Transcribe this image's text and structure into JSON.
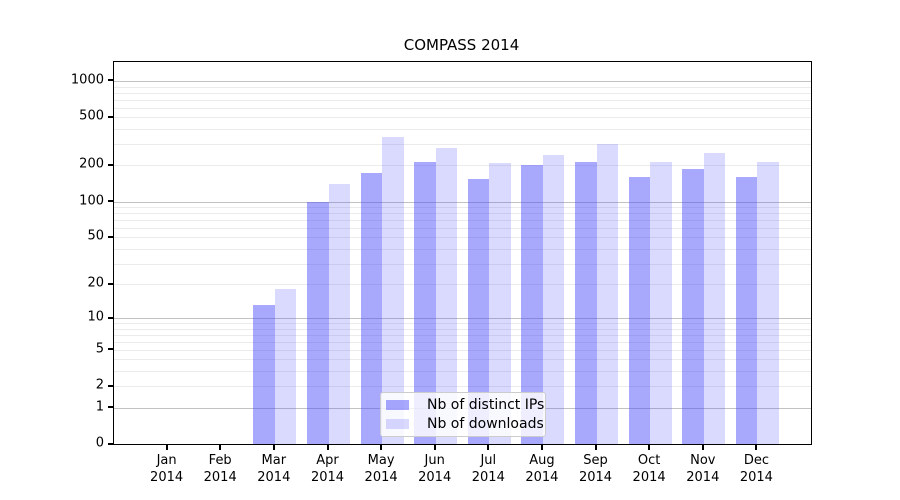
{
  "chart_data": {
    "type": "bar",
    "title": "COMPASS 2014",
    "y_scale": "log10(1+v)",
    "grid": "horizontal",
    "y_ticks": [
      0,
      1,
      2,
      5,
      10,
      20,
      50,
      100,
      200,
      500,
      1000
    ],
    "y_max": 1400,
    "categories": [
      {
        "month": "Jan",
        "year": "2014"
      },
      {
        "month": "Feb",
        "year": "2014"
      },
      {
        "month": "Mar",
        "year": "2014"
      },
      {
        "month": "Apr",
        "year": "2014"
      },
      {
        "month": "May",
        "year": "2014"
      },
      {
        "month": "Jun",
        "year": "2014"
      },
      {
        "month": "Jul",
        "year": "2014"
      },
      {
        "month": "Aug",
        "year": "2014"
      },
      {
        "month": "Sep",
        "year": "2014"
      },
      {
        "month": "Oct",
        "year": "2014"
      },
      {
        "month": "Nov",
        "year": "2014"
      },
      {
        "month": "Dec",
        "year": "2014"
      }
    ],
    "series": [
      {
        "name": "Nb of distinct IPs",
        "short": "distinct-ips",
        "color": "rgba(70,70,250,0.47)",
        "values": [
          0,
          0,
          13,
          100,
          172,
          215,
          155,
          200,
          215,
          160,
          185,
          160
        ]
      },
      {
        "name": "Nb of downloads",
        "short": "downloads",
        "color": "rgba(70,70,250,0.20)",
        "values": [
          0,
          0,
          18,
          140,
          343,
          278,
          209,
          242,
          300,
          213,
          253,
          215
        ]
      }
    ],
    "legend": {
      "position": "lower-center"
    }
  }
}
